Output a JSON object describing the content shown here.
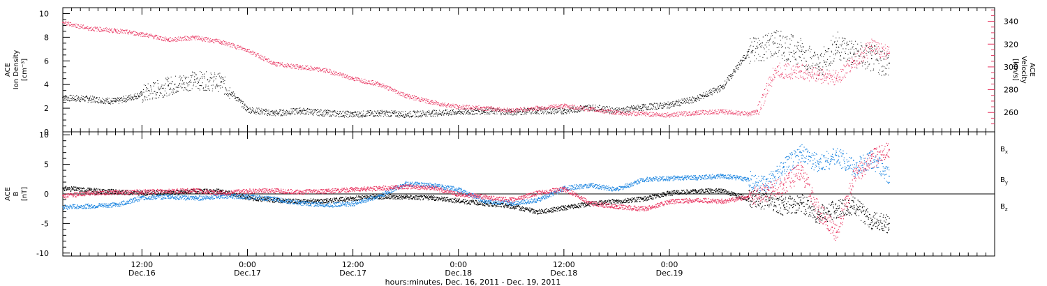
{
  "colors": {
    "black": "#000000",
    "red": "#e8335f",
    "blue": "#1a84e0"
  },
  "chart_data": [
    {
      "type": "scatter",
      "panel": "top",
      "ylabel_left": [
        "ACE",
        "Ion Density",
        "[cm⁻³]"
      ],
      "ylabel_right": [
        "ACE",
        "Velocity",
        "[km/s]"
      ],
      "ylim_left": [
        0,
        10.5
      ],
      "yticks_left": [
        "0",
        "2",
        "4",
        "6",
        "8",
        "10"
      ],
      "ylim_right": [
        243,
        352
      ],
      "yticks_right": [
        "260",
        "280",
        "300",
        "320",
        "340"
      ],
      "series": [
        {
          "color": "#000000",
          "x_hours": [
            0,
            3,
            6,
            9,
            12,
            15,
            18,
            21,
            24,
            27,
            30,
            33,
            36,
            39,
            42,
            45,
            48,
            51,
            54,
            57,
            60,
            63,
            66,
            69,
            72,
            75,
            78,
            81,
            84,
            86,
            88,
            90,
            92,
            94
          ],
          "values": [
            2.9,
            2.8,
            2.6,
            3.2,
            3.9,
            4.4,
            4.2,
            1.9,
            1.6,
            1.8,
            1.6,
            1.5,
            1.6,
            1.5,
            1.6,
            1.7,
            1.8,
            1.7,
            1.8,
            1.8,
            2.1,
            1.8,
            2.1,
            2.3,
            2.8,
            3.8,
            6.8,
            7.5,
            6.8,
            5.5,
            7.4,
            6.6,
            6.2,
            5.8
          ],
          "axis": "left"
        },
        {
          "color": "#e8335f",
          "x_hours": [
            0,
            3,
            6,
            9,
            12,
            15,
            18,
            21,
            24,
            27,
            30,
            33,
            36,
            39,
            42,
            45,
            48,
            51,
            54,
            57,
            60,
            63,
            66,
            69,
            72,
            75,
            78,
            79,
            81,
            84,
            86,
            88,
            90,
            92,
            94
          ],
          "values": [
            339,
            334,
            332,
            329,
            324,
            326,
            322,
            315,
            303,
            300,
            297,
            290,
            285,
            275,
            269,
            265,
            264,
            262,
            264,
            266,
            263,
            260,
            259,
            258,
            260,
            261,
            259,
            261,
            297,
            296,
            293,
            290,
            305,
            318,
            312
          ],
          "axis": "right"
        }
      ]
    },
    {
      "type": "line",
      "panel": "bottom",
      "ylabel": [
        "ACE",
        "B",
        "[nT]"
      ],
      "ylim": [
        -10.5,
        10.5
      ],
      "yticks": [
        "-10",
        "-5",
        "0",
        "5",
        "10"
      ],
      "legend": [
        "B",
        "B",
        "B"
      ],
      "legend_sub": [
        "x",
        "y",
        "z"
      ],
      "series": [
        {
          "color": "#000000",
          "x_hours": [
            0,
            3,
            6,
            9,
            12,
            15,
            18,
            21,
            24,
            27,
            30,
            33,
            36,
            39,
            42,
            45,
            48,
            51,
            54,
            57,
            60,
            63,
            66,
            69,
            72,
            75,
            78,
            80,
            82,
            84,
            86,
            88,
            90,
            92,
            94
          ],
          "values": [
            1.0,
            0.7,
            0.4,
            0.2,
            0.3,
            0.5,
            0.5,
            -0.6,
            -1.0,
            -1.2,
            -1.1,
            -0.7,
            -0.4,
            -0.5,
            -0.6,
            -1.1,
            -1.6,
            -2.0,
            -3.0,
            -2.3,
            -1.6,
            -1.2,
            -0.8,
            0.2,
            0.5,
            0.6,
            -0.8,
            -1.0,
            -2.0,
            -1.5,
            -3.5,
            -2.5,
            -2.0,
            -4.5,
            -5.0
          ],
          "legend_index": 0
        },
        {
          "color": "#1a84e0",
          "x_hours": [
            0,
            3,
            6,
            9,
            12,
            15,
            18,
            21,
            24,
            27,
            30,
            33,
            36,
            39,
            42,
            45,
            48,
            51,
            54,
            57,
            60,
            63,
            66,
            69,
            72,
            75,
            78,
            80,
            82,
            84,
            86,
            88,
            90,
            92,
            94
          ],
          "values": [
            -2.2,
            -2.0,
            -1.8,
            -0.6,
            -0.4,
            -0.7,
            -0.3,
            -0.4,
            -0.8,
            -1.5,
            -1.8,
            -1.6,
            -0.3,
            1.8,
            1.5,
            0.8,
            -1.2,
            -1.5,
            -1.0,
            1.0,
            1.5,
            0.8,
            2.5,
            2.7,
            2.8,
            3.1,
            2.5,
            1.5,
            4.5,
            7.0,
            5.0,
            6.5,
            4.5,
            6.0,
            3.0
          ],
          "legend_index": 1
        },
        {
          "color": "#e8335f",
          "x_hours": [
            0,
            3,
            6,
            9,
            12,
            15,
            18,
            21,
            24,
            27,
            30,
            33,
            36,
            39,
            42,
            45,
            48,
            51,
            54,
            57,
            60,
            63,
            66,
            69,
            72,
            75,
            78,
            80,
            82,
            84,
            86,
            88,
            90,
            92,
            94
          ],
          "values": [
            -0.3,
            0.2,
            0.3,
            0.4,
            0.5,
            0.6,
            0.2,
            0.5,
            0.6,
            0.4,
            0.5,
            0.8,
            1.0,
            1.3,
            1.1,
            0.0,
            -0.5,
            -1.0,
            0.2,
            0.9,
            -1.5,
            -2.1,
            -2.5,
            -1.3,
            -1.0,
            -1.2,
            -0.5,
            0.2,
            1.5,
            4.0,
            -3.0,
            -6.5,
            3.0,
            6.0,
            7.5
          ],
          "legend_index": 2
        }
      ]
    }
  ],
  "x_axis": {
    "xlim_hours": [
      0,
      106
    ],
    "major_ticks": [
      {
        "h": 9,
        "time": "12:00",
        "date": "Dec.16"
      },
      {
        "h": 21,
        "time": "0:00",
        "date": "Dec.17"
      },
      {
        "h": 33,
        "time": "12:00",
        "date": "Dec.17"
      },
      {
        "h": 45,
        "time": "0:00",
        "date": "Dec.18"
      },
      {
        "h": 57,
        "time": "12:00",
        "date": "Dec.18"
      },
      {
        "h": 69,
        "time": "0:00",
        "date": "Dec.19"
      }
    ],
    "xlabel": "hours:minutes, Dec. 16, 2011 - Dec. 19, 2011"
  }
}
